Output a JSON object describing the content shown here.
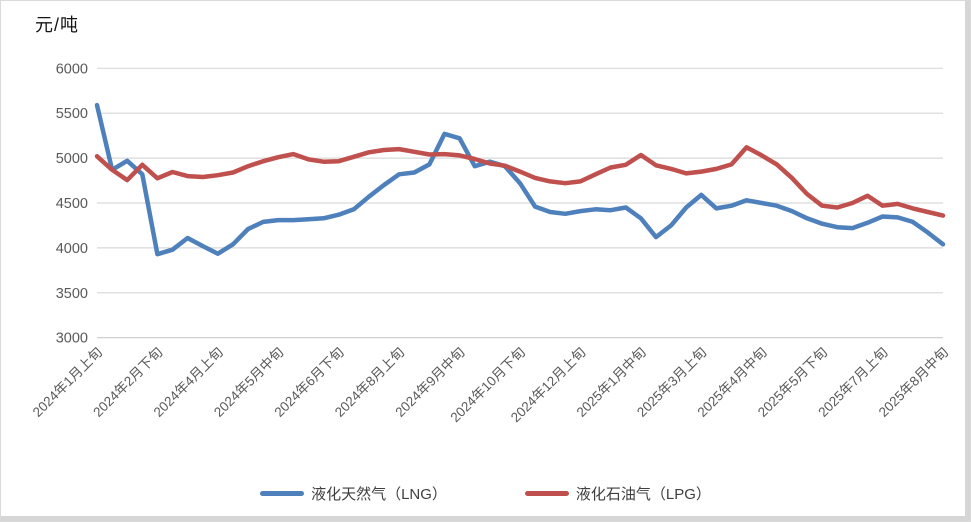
{
  "chart_data": {
    "type": "line",
    "unit_label": "元/吨",
    "n_points": 57,
    "x_tick_interval": 4,
    "x_tick_labels": [
      "2024年1月上旬",
      "2024年2月下旬",
      "2024年4月上旬",
      "2024年5月中旬",
      "2024年6月下旬",
      "2024年8月上旬",
      "2024年9月中旬",
      "2024年10月下旬",
      "2024年12月上旬",
      "2025年1月中旬",
      "2025年3月上旬",
      "2025年4月中旬",
      "2025年5月下旬",
      "2025年7月上旬",
      "2025年8月中旬"
    ],
    "ylim": [
      3000,
      6000
    ],
    "y_ticks": [
      6000,
      5500,
      5000,
      4500,
      4000,
      3500,
      3000
    ],
    "grid": true,
    "legend_position": "bottom",
    "series": [
      {
        "name": "液化天然气（LNG）",
        "color": "#4E80BC",
        "values": [
          5590,
          4870,
          4970,
          4820,
          3930,
          3980,
          4110,
          4020,
          3935,
          4040,
          4210,
          4290,
          4310,
          4310,
          4320,
          4330,
          4370,
          4430,
          4570,
          4700,
          4820,
          4840,
          4930,
          5270,
          5220,
          4910,
          4960,
          4910,
          4720,
          4460,
          4400,
          4380,
          4410,
          4430,
          4420,
          4450,
          4330,
          4120,
          4250,
          4450,
          4590,
          4440,
          4470,
          4530,
          4500,
          4470,
          4410,
          4330,
          4270,
          4230,
          4220,
          4280,
          4350,
          4340,
          4290,
          4170,
          4040
        ]
      },
      {
        "name": "液化石油气（LPG）",
        "color": "#C0504D",
        "values": [
          5020,
          4870,
          4755,
          4925,
          4775,
          4845,
          4800,
          4790,
          4810,
          4840,
          4910,
          4965,
          5010,
          5045,
          4985,
          4960,
          4965,
          5015,
          5065,
          5090,
          5100,
          5070,
          5040,
          5045,
          5030,
          4990,
          4940,
          4915,
          4850,
          4780,
          4740,
          4720,
          4740,
          4820,
          4895,
          4925,
          5035,
          4920,
          4880,
          4830,
          4850,
          4880,
          4930,
          5120,
          5030,
          4930,
          4780,
          4600,
          4470,
          4450,
          4500,
          4580,
          4470,
          4490,
          4440,
          4400,
          4360
        ]
      }
    ],
    "colors": {
      "gridline": "#D9D9D9",
      "axis_line": "#C9C9C9",
      "tick_text": "#595959",
      "lng_line": "#4E80BC",
      "lpg_line": "#C0504D"
    }
  }
}
